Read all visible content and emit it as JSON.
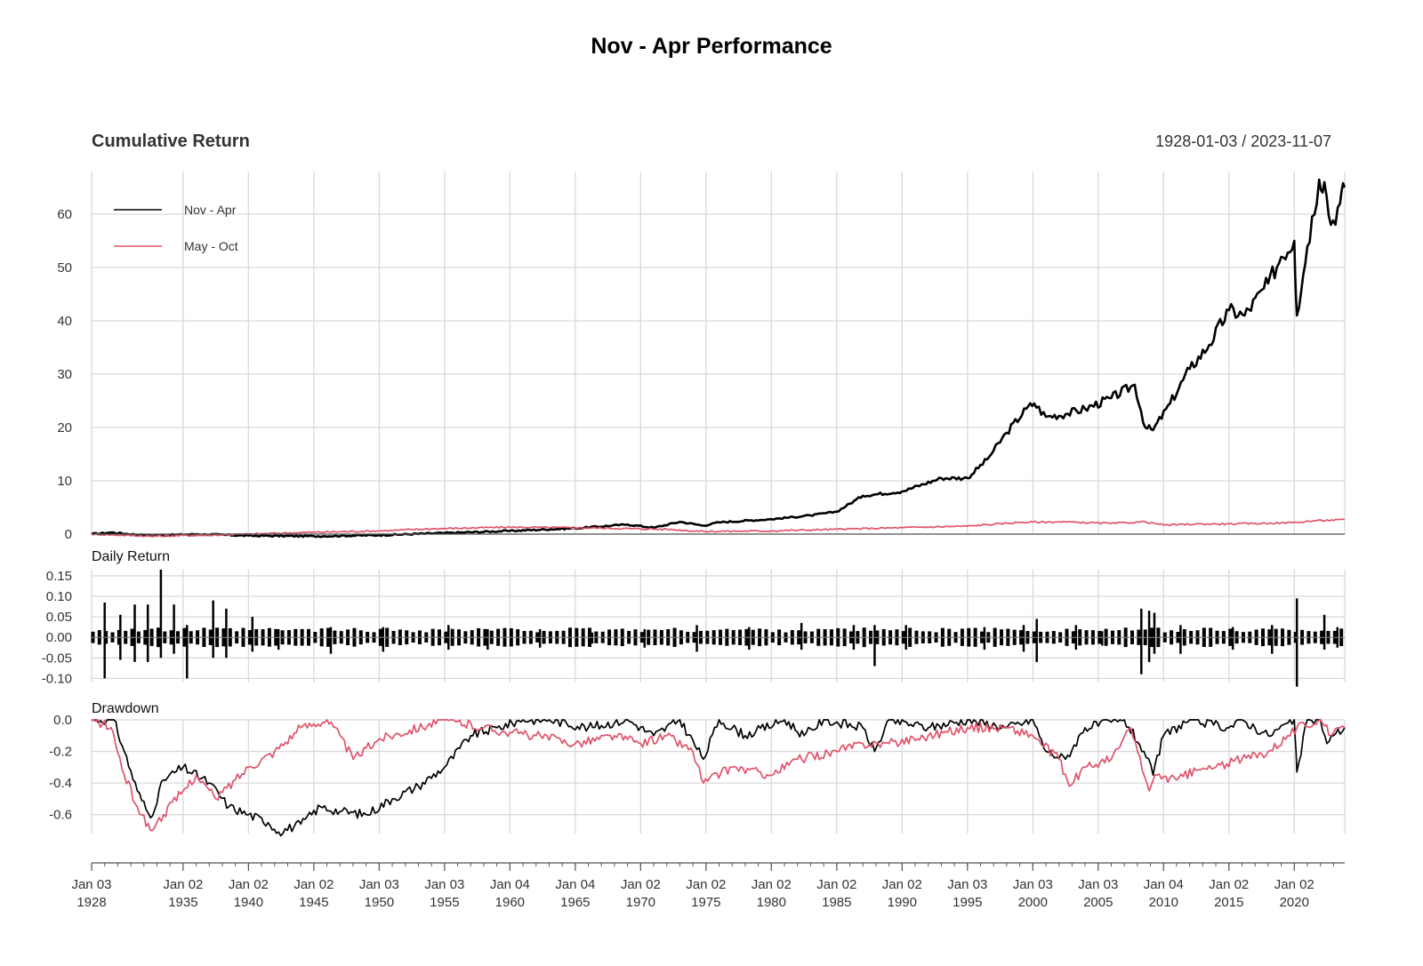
{
  "title": "Nov - Apr Performance",
  "colors": {
    "series1": "#000000",
    "series2": "#DF536B",
    "grid": "#d9d9d9"
  },
  "chart_data": [
    {
      "type": "line",
      "panel": "cumulative",
      "title": "Cumulative Return",
      "date_range": "1928-01-03 / 2023-11-07",
      "ylim": [
        0,
        68
      ],
      "yticks": [
        "0",
        "10",
        "20",
        "30",
        "40",
        "50",
        "60"
      ],
      "legend": {
        "placement": "top-left",
        "entries": [
          "Nov - Apr",
          "May - Oct"
        ]
      },
      "grid": true,
      "series": [
        {
          "name": "Nov - Apr",
          "color": "#000000",
          "x": [
            1928.0,
            1929.5,
            1932.5,
            1936.0,
            1940.0,
            1945.0,
            1950.0,
            1955.0,
            1960.0,
            1965.0,
            1969.0,
            1971.0,
            1973.0,
            1974.8,
            1976.0,
            1980.0,
            1983.0,
            1985.0,
            1987.0,
            1990.0,
            1993.0,
            1995.0,
            1996.5,
            1998.0,
            1999.5,
            2000.1,
            2001.0,
            2002.5,
            2004.0,
            2006.0,
            2007.8,
            2008.6,
            2009.2,
            2010.5,
            2012.0,
            2013.5,
            2015.0,
            2016.2,
            2018.0,
            2019.0,
            2020.0,
            2020.2,
            2021.0,
            2021.9,
            2022.3,
            2022.8,
            2023.5,
            2023.85
          ],
          "values": [
            0.0,
            0.3,
            -0.3,
            0.0,
            -0.3,
            -0.4,
            -0.2,
            0.2,
            0.6,
            1.1,
            1.8,
            1.2,
            2.3,
            1.6,
            2.2,
            2.8,
            3.5,
            4.2,
            7.2,
            8.0,
            10.5,
            10.5,
            14.0,
            19.0,
            23.5,
            24.5,
            22.0,
            22.5,
            23.5,
            25.5,
            28.0,
            20.0,
            19.5,
            24.5,
            31.0,
            35.5,
            42.0,
            41.0,
            47.0,
            52.0,
            55.0,
            41.0,
            54.0,
            66.5,
            66.0,
            58.0,
            62.0,
            65.0
          ]
        },
        {
          "name": "May - Oct",
          "color": "#DF536B",
          "x": [
            1928.0,
            1932.5,
            1937.0,
            1940.0,
            1944.0,
            1950.0,
            1954.0,
            1960.0,
            1965.0,
            1972.0,
            1974.8,
            1980.0,
            1985.0,
            1990.0,
            1995.0,
            1999.0,
            2002.0,
            2006.0,
            2008.6,
            2010.0,
            2013.0,
            2015.0,
            2019.0,
            2020.2,
            2021.5,
            2023.85
          ],
          "values": [
            0.0,
            -0.4,
            -0.2,
            0.0,
            0.3,
            0.6,
            1.0,
            1.3,
            1.2,
            0.9,
            0.5,
            0.6,
            0.9,
            1.2,
            1.5,
            2.2,
            2.3,
            2.0,
            2.3,
            1.7,
            1.9,
            1.9,
            2.1,
            2.2,
            2.5,
            2.7
          ]
        }
      ]
    },
    {
      "type": "bar",
      "panel": "daily",
      "title": "Daily Return",
      "ylim": [
        -0.11,
        0.165
      ],
      "yticks": [
        "-0.10",
        "-0.05",
        "0.00",
        "0.05",
        "0.10",
        "0.15"
      ],
      "grid": true,
      "series": [
        {
          "name": "Nov - Apr",
          "color": "#000000",
          "x": [
            1929.0,
            1930.2,
            1931.3,
            1932.3,
            1933.3,
            1934.3,
            1935.3,
            1937.3,
            1938.3,
            1940.3,
            1942.3,
            1946.3,
            1950.3,
            1955.3,
            1958.3,
            1962.3,
            1966.3,
            1970.3,
            1974.3,
            1978.3,
            1982.3,
            1986.3,
            1987.9,
            1990.3,
            1996.3,
            1999.3,
            2000.3,
            2003.3,
            2005.3,
            2008.3,
            2008.9,
            2009.3,
            2011.3,
            2015.3,
            2018.3,
            2020.2,
            2022.3,
            2023.3
          ],
          "up": [
            0.085,
            0.055,
            0.08,
            0.08,
            0.165,
            0.08,
            0.03,
            0.09,
            0.07,
            0.05,
            0.02,
            0.025,
            0.025,
            0.03,
            0.02,
            0.02,
            0.012,
            0.02,
            0.03,
            0.025,
            0.035,
            0.03,
            0.03,
            0.03,
            0.025,
            0.03,
            0.045,
            0.03,
            0.015,
            0.07,
            0.065,
            0.06,
            0.03,
            0.025,
            0.03,
            0.095,
            0.055,
            0.025
          ],
          "down": [
            -0.1,
            -0.055,
            -0.06,
            -0.06,
            -0.05,
            -0.04,
            -0.1,
            -0.05,
            -0.05,
            -0.035,
            -0.03,
            -0.04,
            -0.035,
            -0.03,
            -0.03,
            -0.025,
            -0.015,
            -0.025,
            -0.035,
            -0.03,
            -0.03,
            -0.03,
            -0.07,
            -0.03,
            -0.03,
            -0.035,
            -0.06,
            -0.03,
            -0.02,
            -0.09,
            -0.06,
            -0.04,
            -0.04,
            -0.03,
            -0.04,
            -0.12,
            -0.03,
            -0.025
          ]
        }
      ]
    },
    {
      "type": "line",
      "panel": "drawdown",
      "title": "Drawdown",
      "ylim": [
        -0.72,
        0.0
      ],
      "yticks": [
        "-0.6",
        "-0.4",
        "-0.2",
        "0.0"
      ],
      "grid": true,
      "series": [
        {
          "name": "Nov - Apr",
          "color": "#000000",
          "x": [
            1928.0,
            1929.7,
            1930.5,
            1931.5,
            1932.5,
            1933.5,
            1935.0,
            1937.0,
            1938.5,
            1940.0,
            1941.5,
            1942.3,
            1944.0,
            1945.5,
            1947.0,
            1949.0,
            1951.0,
            1953.0,
            1955.0,
            1957.0,
            1959.0,
            1961.0,
            1963.0,
            1966.0,
            1969.0,
            1971.0,
            1973.0,
            1974.8,
            1976.0,
            1978.0,
            1981.0,
            1982.5,
            1984.0,
            1987.0,
            1987.9,
            1989.0,
            1992.0,
            1995.0,
            1998.0,
            2000.0,
            2001.0,
            2002.5,
            2004.0,
            2007.0,
            2008.5,
            2009.2,
            2010.0,
            2012.0,
            2015.0,
            2016.0,
            2018.0,
            2020.0,
            2020.2,
            2021.0,
            2022.0,
            2022.5,
            2023.0,
            2023.85
          ],
          "values": [
            0.0,
            0.0,
            -0.2,
            -0.45,
            -0.62,
            -0.38,
            -0.3,
            -0.4,
            -0.55,
            -0.6,
            -0.65,
            -0.71,
            -0.66,
            -0.55,
            -0.58,
            -0.6,
            -0.5,
            -0.42,
            -0.3,
            -0.1,
            -0.05,
            0.0,
            0.0,
            -0.05,
            0.0,
            -0.1,
            0.0,
            -0.25,
            0.0,
            -0.1,
            0.0,
            -0.1,
            0.0,
            -0.05,
            -0.2,
            0.0,
            -0.05,
            0.0,
            -0.05,
            0.0,
            -0.2,
            -0.25,
            -0.05,
            0.0,
            -0.2,
            -0.35,
            -0.1,
            0.0,
            -0.05,
            0.0,
            -0.1,
            0.0,
            -0.33,
            0.0,
            0.0,
            -0.15,
            -0.1,
            -0.05
          ]
        },
        {
          "name": "May - Oct",
          "color": "#DF536B",
          "x": [
            1928.0,
            1929.5,
            1930.5,
            1931.5,
            1932.5,
            1933.5,
            1935.0,
            1936.0,
            1937.5,
            1939.0,
            1940.0,
            1942.0,
            1944.0,
            1946.0,
            1947.0,
            1948.0,
            1950.0,
            1955.0,
            1958.0,
            1960.0,
            1962.0,
            1965.0,
            1968.0,
            1970.0,
            1972.0,
            1974.0,
            1974.8,
            1977.0,
            1980.0,
            1982.0,
            1985.0,
            1987.0,
            1989.0,
            1992.0,
            1995.0,
            1998.0,
            2000.0,
            2002.0,
            2002.8,
            2004.0,
            2006.0,
            2007.5,
            2008.9,
            2009.5,
            2011.0,
            2012.5,
            2014.0,
            2016.0,
            2018.0,
            2019.5,
            2020.2,
            2022.0,
            2022.8,
            2023.85
          ],
          "values": [
            0.0,
            -0.05,
            -0.35,
            -0.55,
            -0.7,
            -0.6,
            -0.45,
            -0.35,
            -0.5,
            -0.38,
            -0.3,
            -0.2,
            -0.05,
            0.0,
            -0.1,
            -0.25,
            -0.12,
            0.0,
            -0.05,
            -0.08,
            -0.1,
            -0.15,
            -0.1,
            -0.15,
            -0.1,
            -0.2,
            -0.4,
            -0.3,
            -0.35,
            -0.25,
            -0.2,
            -0.15,
            -0.15,
            -0.1,
            -0.05,
            -0.05,
            -0.1,
            -0.25,
            -0.42,
            -0.3,
            -0.25,
            -0.05,
            -0.45,
            -0.35,
            -0.38,
            -0.32,
            -0.3,
            -0.25,
            -0.2,
            -0.1,
            -0.05,
            0.0,
            -0.1,
            -0.05
          ]
        }
      ]
    }
  ],
  "x_axis": {
    "ticks": [
      {
        "year": 1928.0,
        "line1": "Jan 03",
        "line2": "1928"
      },
      {
        "year": 1935.0,
        "line1": "Jan 02",
        "line2": "1935"
      },
      {
        "year": 1940.0,
        "line1": "Jan 02",
        "line2": "1940"
      },
      {
        "year": 1945.0,
        "line1": "Jan 02",
        "line2": "1945"
      },
      {
        "year": 1950.0,
        "line1": "Jan 03",
        "line2": "1950"
      },
      {
        "year": 1955.0,
        "line1": "Jan 03",
        "line2": "1955"
      },
      {
        "year": 1960.0,
        "line1": "Jan 04",
        "line2": "1960"
      },
      {
        "year": 1965.0,
        "line1": "Jan 04",
        "line2": "1965"
      },
      {
        "year": 1970.0,
        "line1": "Jan 02",
        "line2": "1970"
      },
      {
        "year": 1975.0,
        "line1": "Jan 02",
        "line2": "1975"
      },
      {
        "year": 1980.0,
        "line1": "Jan 02",
        "line2": "1980"
      },
      {
        "year": 1985.0,
        "line1": "Jan 02",
        "line2": "1985"
      },
      {
        "year": 1990.0,
        "line1": "Jan 02",
        "line2": "1990"
      },
      {
        "year": 1995.0,
        "line1": "Jan 03",
        "line2": "1995"
      },
      {
        "year": 2000.0,
        "line1": "Jan 03",
        "line2": "2000"
      },
      {
        "year": 2005.0,
        "line1": "Jan 03",
        "line2": "2005"
      },
      {
        "year": 2010.0,
        "line1": "Jan 04",
        "line2": "2010"
      },
      {
        "year": 2015.0,
        "line1": "Jan 02",
        "line2": "2015"
      },
      {
        "year": 2020.0,
        "line1": "Jan 02",
        "line2": "2020"
      }
    ]
  }
}
